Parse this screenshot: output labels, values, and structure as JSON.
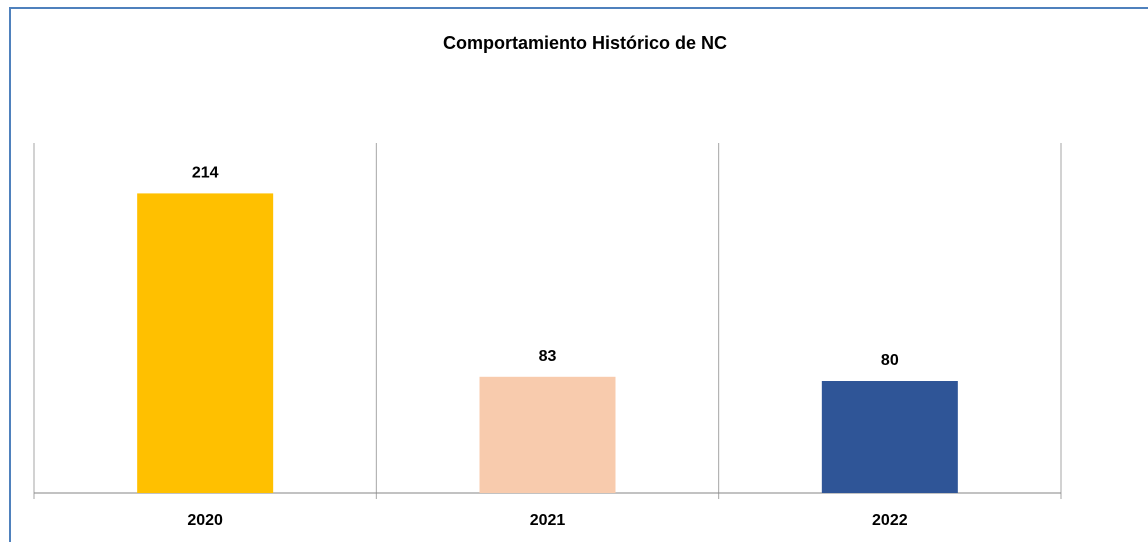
{
  "chart_data": {
    "type": "bar",
    "title": "Comportamiento Histórico de NC",
    "categories": [
      "2020",
      "2021",
      "2022"
    ],
    "values": [
      214,
      83,
      80
    ],
    "colors": [
      "#ffc000",
      "#f8cbad",
      "#2f5597"
    ],
    "ylim": [
      0,
      250
    ],
    "grid": true
  }
}
